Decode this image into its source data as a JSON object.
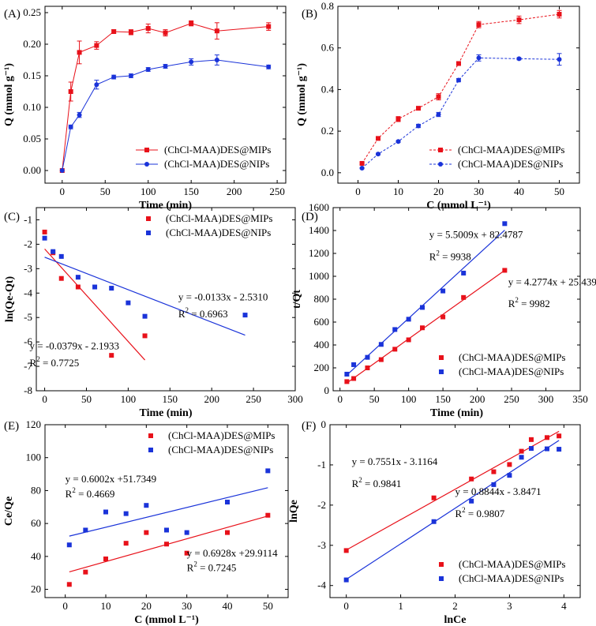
{
  "colors": {
    "mip": "#e8111a",
    "nip": "#1a33d9",
    "axis": "#000000"
  },
  "chart_data": [
    {
      "panel": "(A)",
      "type": "line",
      "xlabel": "Time (min)",
      "ylabel": "Q (mmol g⁻¹)",
      "xlim": [
        -20,
        260
      ],
      "ylim": [
        -0.02,
        0.26
      ],
      "xticks": [
        0,
        50,
        100,
        150,
        200,
        250
      ],
      "yticks": [
        0.0,
        0.05,
        0.1,
        0.15,
        0.2,
        0.25
      ],
      "ytick_decimals": 2,
      "legend": "bottom-right",
      "series": [
        {
          "name": "(ChCl-MAA)DES@MIPs",
          "color": "mip",
          "marker": "square",
          "style": "solid",
          "x": [
            0,
            10,
            20,
            40,
            60,
            80,
            100,
            120,
            150,
            180,
            240
          ],
          "y": [
            0.0,
            0.125,
            0.187,
            0.198,
            0.22,
            0.219,
            0.225,
            0.218,
            0.233,
            0.221,
            0.228
          ],
          "err": [
            0,
            0.015,
            0.018,
            0.006,
            0.003,
            0.004,
            0.007,
            0.005,
            0.004,
            0.013,
            0.006
          ]
        },
        {
          "name": "(ChCl-MAA)DES@NIPs",
          "color": "nip",
          "marker": "circle",
          "style": "solid",
          "x": [
            0,
            10,
            20,
            40,
            60,
            80,
            100,
            120,
            150,
            180,
            240
          ],
          "y": [
            0.0,
            0.069,
            0.088,
            0.136,
            0.148,
            0.15,
            0.16,
            0.165,
            0.172,
            0.175,
            0.164
          ],
          "err": [
            0,
            0.003,
            0.004,
            0.007,
            0.003,
            0.003,
            0.003,
            0.003,
            0.005,
            0.008,
            0.003
          ]
        }
      ]
    },
    {
      "panel": "(B)",
      "type": "line",
      "xlabel": "C (mmol L⁻¹)",
      "ylabel": "Q (mmol g⁻¹)",
      "xlim": [
        -5,
        55
      ],
      "ylim": [
        -0.05,
        0.8
      ],
      "xticks": [
        0,
        10,
        20,
        30,
        40,
        50
      ],
      "yticks": [
        0.0,
        0.2,
        0.4,
        0.6,
        0.8
      ],
      "ytick_decimals": 1,
      "legend": "bottom-right",
      "series": [
        {
          "name": "(ChCl-MAA)DES@MIPs",
          "color": "mip",
          "marker": "square",
          "style": "dashed",
          "x": [
            1,
            5,
            10,
            15,
            20,
            25,
            30,
            40,
            50
          ],
          "y": [
            0.045,
            0.165,
            0.258,
            0.31,
            0.365,
            0.525,
            0.712,
            0.735,
            0.762
          ],
          "err": [
            0.005,
            0.005,
            0.012,
            0.008,
            0.015,
            0.008,
            0.015,
            0.018,
            0.018
          ]
        },
        {
          "name": "(ChCl-MAA)DES@NIPs",
          "color": "nip",
          "marker": "circle",
          "style": "dashed",
          "x": [
            1,
            5,
            10,
            15,
            20,
            25,
            30,
            40,
            50
          ],
          "y": [
            0.022,
            0.09,
            0.15,
            0.225,
            0.28,
            0.445,
            0.552,
            0.548,
            0.545
          ],
          "err": [
            0.003,
            0.004,
            0.004,
            0.008,
            0.01,
            0.008,
            0.015,
            0.005,
            0.028
          ]
        }
      ]
    },
    {
      "panel": "(C)",
      "type": "scatter",
      "xlabel": "Time (min)",
      "ylabel": "ln(Qe-Qt)",
      "xlim": [
        -10,
        300
      ],
      "ylim": [
        -8,
        -0.5
      ],
      "xticks": [
        0,
        50,
        100,
        150,
        200,
        250,
        300
      ],
      "yticks": [
        -8,
        -7,
        -6,
        -5,
        -4,
        -3,
        -2,
        -1
      ],
      "ytick_decimals": 0,
      "legend": "top-right",
      "series": [
        {
          "name": "(ChCl-MAA)DES@MIPs",
          "color": "mip",
          "marker": "square",
          "x": [
            0,
            10,
            20,
            40,
            80,
            120
          ],
          "y": [
            -1.5,
            -2.35,
            -3.4,
            -3.75,
            -6.55,
            -5.75
          ],
          "fit": {
            "slope": -0.0379,
            "intercept": -2.1933,
            "x": [
              0,
              120
            ]
          }
        },
        {
          "name": "(ChCl-MAA)DES@NIPs",
          "color": "nip",
          "marker": "square",
          "x": [
            0,
            10,
            20,
            40,
            60,
            80,
            100,
            120,
            240
          ],
          "y": [
            -1.75,
            -2.3,
            -2.5,
            -3.35,
            -3.75,
            -3.8,
            -4.4,
            -4.95,
            -4.9
          ],
          "fit": {
            "slope": -0.0133,
            "intercept": -2.531,
            "x": [
              0,
              240
            ]
          }
        }
      ],
      "annotations": [
        {
          "text": "y = -0.0379x - 2.1933",
          "x": -18,
          "y": -6.3
        },
        {
          "text": "R2 = 0.7725",
          "x": -18,
          "y": -7.0
        },
        {
          "text": "y = -0.0133x - 2.5310",
          "x": 160,
          "y": -4.3
        },
        {
          "text": "R2 = 0.6963",
          "x": 160,
          "y": -5.0
        }
      ]
    },
    {
      "panel": "(D)",
      "type": "scatter",
      "xlabel": "Time (min)",
      "ylabel": "t/Qt",
      "xlim": [
        -10,
        350
      ],
      "ylim": [
        0,
        1600
      ],
      "xticks": [
        0,
        50,
        100,
        150,
        200,
        250,
        300,
        350
      ],
      "yticks": [
        0,
        200,
        400,
        600,
        800,
        1000,
        1200,
        1400,
        1600
      ],
      "ytick_decimals": 0,
      "legend": "bottom-right",
      "series": [
        {
          "name": "(ChCl-MAA)DES@MIPs",
          "color": "mip",
          "marker": "square",
          "x": [
            10,
            20,
            40,
            60,
            80,
            100,
            120,
            150,
            180,
            240
          ],
          "y": [
            80,
            107,
            200,
            272,
            363,
            445,
            550,
            645,
            815,
            1052
          ],
          "fit": {
            "slope": 4.2774,
            "intercept": 25.4395,
            "x": [
              10,
              240
            ]
          }
        },
        {
          "name": "(ChCl-MAA)DES@NIPs",
          "color": "nip",
          "marker": "square",
          "x": [
            10,
            20,
            40,
            60,
            80,
            100,
            120,
            150,
            180,
            240
          ],
          "y": [
            145,
            228,
            292,
            405,
            535,
            625,
            728,
            872,
            1028,
            1460
          ],
          "fit": {
            "slope": 5.5009,
            "intercept": 82.4787,
            "x": [
              10,
              240
            ]
          }
        }
      ],
      "annotations": [
        {
          "text": "y = 5.5009x + 82.4787",
          "x": 130,
          "y": 1335
        },
        {
          "text": "R2 = 9938",
          "x": 130,
          "y": 1140
        },
        {
          "text": "y = 4.2774x + 25.4395",
          "x": 245,
          "y": 920
        },
        {
          "text": "R2 = 9982",
          "x": 245,
          "y": 730
        }
      ]
    },
    {
      "panel": "(E)",
      "type": "scatter",
      "xlabel": "C (mmol L⁻¹)",
      "ylabel": "Ce/Qe",
      "xlim": [
        -5,
        55
      ],
      "ylim": [
        15,
        120
      ],
      "xticks": [
        0,
        10,
        20,
        30,
        40,
        50
      ],
      "yticks": [
        20,
        40,
        60,
        80,
        100,
        120
      ],
      "ytick_decimals": 0,
      "legend": "top-right",
      "series": [
        {
          "name": "(ChCl-MAA)DES@MIPs",
          "color": "mip",
          "marker": "square",
          "x": [
            1,
            5,
            10,
            15,
            20,
            25,
            30,
            40,
            50
          ],
          "y": [
            23,
            30.5,
            38.5,
            48,
            54.5,
            47.5,
            42,
            54.5,
            65
          ],
          "fit": {
            "slope": 0.6928,
            "intercept": 29.9114,
            "x": [
              1,
              50
            ]
          }
        },
        {
          "name": "(ChCl-MAA)DES@NIPs",
          "color": "nip",
          "marker": "square",
          "x": [
            1,
            5,
            10,
            15,
            20,
            25,
            30,
            40,
            50
          ],
          "y": [
            47,
            56,
            67,
            66,
            71,
            56,
            54.5,
            73,
            92
          ],
          "fit": {
            "slope": 0.6002,
            "intercept": 51.7349,
            "x": [
              1,
              50
            ]
          }
        }
      ],
      "annotations": [
        {
          "text": "y = 0.6002x +51.7349",
          "x": 0,
          "y": 85
        },
        {
          "text": "R2 = 0.4669",
          "x": 0,
          "y": 76
        },
        {
          "text": "y = 0.6928x +29.9114",
          "x": 30,
          "y": 40
        },
        {
          "text": "R2 = 0.7245",
          "x": 30,
          "y": 31
        }
      ]
    },
    {
      "panel": "(F)",
      "type": "scatter",
      "xlabel": "lnCe",
      "ylabel": "lnQe",
      "xlim": [
        -0.3,
        4.3
      ],
      "ylim": [
        -4.3,
        0
      ],
      "xticks": [
        0,
        1,
        2,
        3,
        4
      ],
      "yticks": [
        -4,
        -3,
        -2,
        -1,
        0
      ],
      "ytick_decimals": 0,
      "legend": "bottom-right",
      "series": [
        {
          "name": "(ChCl-MAA)DES@MIPs",
          "color": "mip",
          "marker": "square",
          "x": [
            0,
            1.61,
            2.3,
            2.71,
            3.0,
            3.22,
            3.4,
            3.69,
            3.91
          ],
          "y": [
            -3.13,
            -1.82,
            -1.35,
            -1.17,
            -0.99,
            -0.66,
            -0.37,
            -0.32,
            -0.28
          ],
          "fit": {
            "slope": 0.7551,
            "intercept": -3.1164,
            "x": [
              0,
              3.91
            ]
          }
        },
        {
          "name": "(ChCl-MAA)DES@NIPs",
          "color": "nip",
          "marker": "square",
          "x": [
            0,
            1.61,
            2.3,
            2.71,
            3.0,
            3.22,
            3.4,
            3.69,
            3.91
          ],
          "y": [
            -3.86,
            -2.41,
            -1.9,
            -1.49,
            -1.26,
            -0.81,
            -0.59,
            -0.6,
            -0.61
          ],
          "fit": {
            "slope": 0.8844,
            "intercept": -3.8471,
            "x": [
              0,
              3.91
            ]
          }
        }
      ],
      "annotations": [
        {
          "text": "y = 0.7551x - 3.1164",
          "x": 0.1,
          "y": -1.0
        },
        {
          "text": "R2 = 0.9841",
          "x": 0.1,
          "y": -1.55
        },
        {
          "text": "y = 0.8844x - 3.8471",
          "x": 2.0,
          "y": -1.75
        },
        {
          "text": "R2 = 0.9807",
          "x": 2.0,
          "y": -2.3
        }
      ]
    }
  ]
}
